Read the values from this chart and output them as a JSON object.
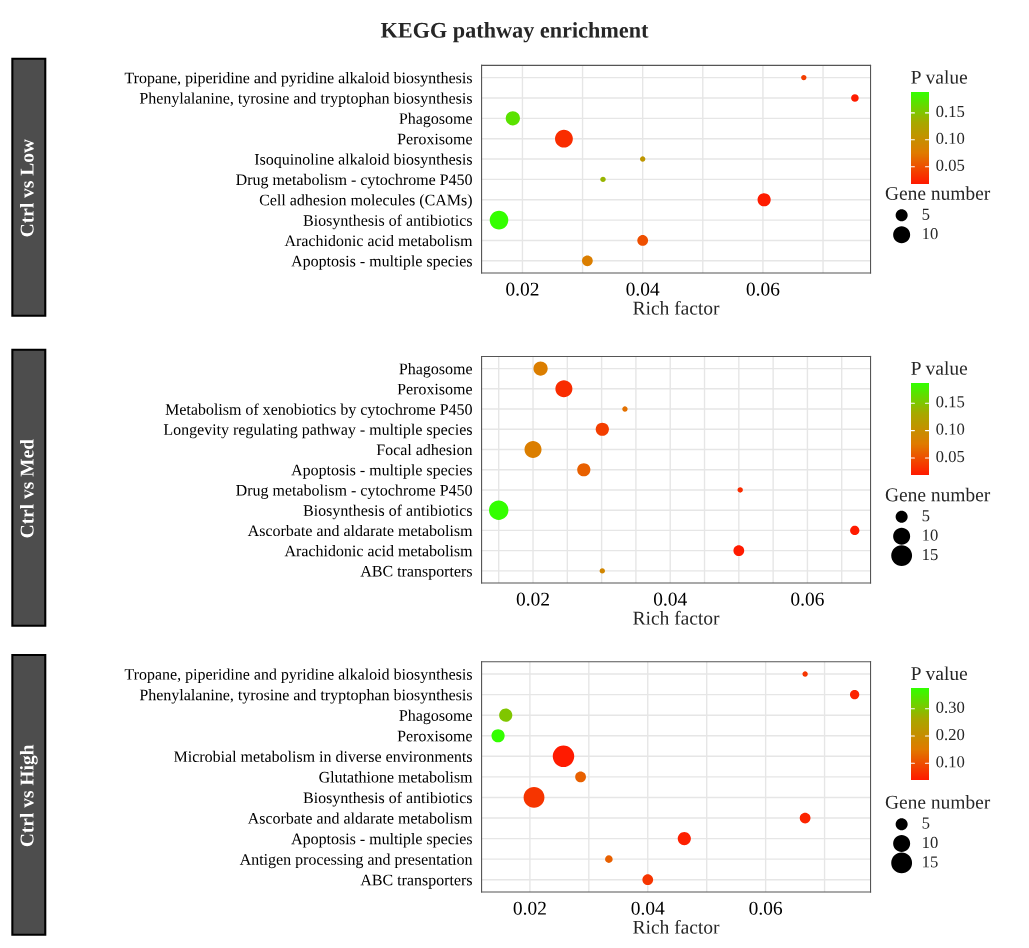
{
  "chart_data": [
    {
      "type": "bubble",
      "title": "KEGG pathway enrichment",
      "ylabel": "Ctrl vs Low",
      "xlabel": "Rich factor",
      "orientation": "horizontal",
      "categories": [
        "Tropane, piperidine and pyridine alkaloid biosynthesis",
        "Phenylalanine, tyrosine and tryptophan biosynthesis",
        "Phagosome",
        "Peroxisome",
        "Isoquinoline alkaloid biosynthesis",
        "Drug metabolism - cytochrome P450",
        "Cell adhesion molecules (CAMs)",
        "Biosynthesis of antibiotics",
        "Arachidonic acid metabolism",
        "Apoptosis - multiple species"
      ],
      "values": [
        0.0668,
        0.0753,
        0.0184,
        0.0269,
        0.04,
        0.0334,
        0.0602,
        0.0161,
        0.04,
        0.0308
      ],
      "cvalues": [
        0.04,
        0.02,
        0.17,
        0.03,
        0.11,
        0.14,
        0.02,
        0.189,
        0.05,
        0.08
      ],
      "sizes": [
        1,
        2,
        7,
        11,
        1,
        1,
        6,
        12,
        4,
        4
      ],
      "clabel": "P value",
      "clim": [
        0.018,
        0.189
      ],
      "cticks": [
        {
          "value": 0.05,
          "label": "0.05"
        },
        {
          "value": 0.1,
          "label": "0.10"
        },
        {
          "value": 0.15,
          "label": "0.15"
        }
      ],
      "legend_title": "Gene number",
      "size_legend": [
        5,
        10
      ],
      "xlim": [
        0.0132,
        0.0779
      ],
      "xticks": [
        0.02,
        {
          "value": 0.03,
          "label": null
        },
        0.04,
        {
          "value": 0.05,
          "label": null
        },
        0.06,
        {
          "value": 0.07,
          "label": null
        }
      ],
      "grid": true
    },
    {
      "type": "bubble",
      "ylabel": "Ctrl vs Med",
      "xlabel": "Rich factor",
      "orientation": "horizontal",
      "categories": [
        "Phagosome",
        "Peroxisome",
        "Metabolism of xenobiotics by cytochrome P450",
        "Longevity regulating pathway - multiple species",
        "Focal adhesion",
        "Apoptosis - multiple species",
        "Drug metabolism - cytochrome P450",
        "Biosynthesis of antibiotics",
        "Ascorbate and aldarate metabolism",
        "Arachidonic acid metabolism",
        "ABC transporters"
      ],
      "values": [
        0.0211,
        0.0245,
        0.0334,
        0.0301,
        0.02,
        0.0274,
        0.0502,
        0.015,
        0.0669,
        0.05,
        0.0301
      ],
      "cvalues": [
        0.08,
        0.03,
        0.07,
        0.04,
        0.08,
        0.06,
        0.03,
        0.187,
        0.02,
        0.02,
        0.09
      ],
      "sizes": [
        7,
        10,
        1,
        6,
        10,
        6,
        1,
        13,
        3,
        4,
        1
      ],
      "clabel": "P value",
      "clim": [
        0.019,
        0.187
      ],
      "cticks": [
        {
          "value": 0.05,
          "label": "0.05"
        },
        {
          "value": 0.1,
          "label": "0.10"
        },
        {
          "value": 0.15,
          "label": "0.15"
        }
      ],
      "legend_title": "Gene number",
      "size_legend": [
        5,
        10,
        15
      ],
      "xlim": [
        0.0125,
        0.0692
      ],
      "xticks": [
        {
          "value": 0.015,
          "label": null
        },
        0.02,
        {
          "value": 0.025,
          "label": null
        },
        {
          "value": 0.03,
          "label": null
        },
        {
          "value": 0.035,
          "label": null
        },
        0.04,
        {
          "value": 0.045,
          "label": null
        },
        {
          "value": 0.05,
          "label": null
        },
        {
          "value": 0.055,
          "label": null
        },
        0.06,
        {
          "value": 0.065,
          "label": null
        }
      ],
      "grid": true
    },
    {
      "type": "bubble",
      "ylabel": "Ctrl vs High",
      "xlabel": "Rich factor",
      "orientation": "horizontal",
      "categories": [
        "Tropane, piperidine and pyridine alkaloid biosynthesis",
        "Phenylalanine, tyrosine and tryptophan biosynthesis",
        "Phagosome",
        "Peroxisome",
        "Microbial metabolism in diverse environments",
        "Glutathione metabolism",
        "Biosynthesis of antibiotics",
        "Ascorbate and aldarate metabolism",
        "Apoptosis - multiple species",
        "Antigen processing and presentation",
        "ABC transporters"
      ],
      "values": [
        0.0667,
        0.0751,
        0.0159,
        0.0146,
        0.0257,
        0.0286,
        0.0207,
        0.0667,
        0.0462,
        0.0334,
        0.04
      ],
      "cvalues": [
        0.07,
        0.05,
        0.3,
        0.375,
        0.04,
        0.12,
        0.07,
        0.05,
        0.045,
        0.12,
        0.07
      ],
      "sizes": [
        1,
        3,
        6,
        6,
        16,
        4,
        15,
        4,
        6,
        2,
        4
      ],
      "clabel": "P value",
      "clim": [
        0.038,
        0.375
      ],
      "cticks": [
        {
          "value": 0.1,
          "label": "0.10"
        },
        {
          "value": 0.2,
          "label": "0.20"
        },
        {
          "value": 0.3,
          "label": "0.30"
        }
      ],
      "legend_title": "Gene number",
      "size_legend": [
        5,
        10,
        15
      ],
      "xlim": [
        0.0118,
        0.0778
      ],
      "xticks": [
        0.02,
        {
          "value": 0.03,
          "label": null
        },
        0.04,
        {
          "value": 0.05,
          "label": null
        },
        0.06,
        {
          "value": 0.07,
          "label": null
        }
      ],
      "grid": true
    }
  ]
}
